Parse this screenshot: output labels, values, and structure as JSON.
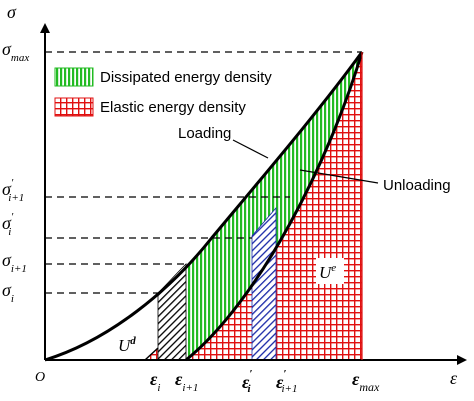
{
  "axes": {
    "y_symbol": "σ",
    "x_symbol": "ε",
    "origin": "O"
  },
  "y_ticks": [
    {
      "base": "σ",
      "sub": "max",
      "prime": ""
    },
    {
      "base": "σ",
      "sub": "i+1",
      "prime": "′"
    },
    {
      "base": "σ",
      "sub": "i",
      "prime": "′"
    },
    {
      "base": "σ",
      "sub": "i+1",
      "prime": ""
    },
    {
      "base": "σ",
      "sub": "i",
      "prime": ""
    }
  ],
  "x_ticks": [
    {
      "base": "ε",
      "sub": "i",
      "prime": ""
    },
    {
      "base": "ε",
      "sub": "i+1",
      "prime": ""
    },
    {
      "base": "ε",
      "sub": "i",
      "prime": "′"
    },
    {
      "base": "ε",
      "sub": "i+1",
      "prime": "′"
    },
    {
      "base": "ε",
      "sub": "max",
      "prime": ""
    }
  ],
  "legend": [
    {
      "label": "Dissipated energy density",
      "color": "#22bb22"
    },
    {
      "label": "Elastic energy density",
      "color": "#e01010"
    }
  ],
  "curves": {
    "loading_label": "Loading",
    "unloading_label": "Unloading"
  },
  "regions": {
    "ud_base": "U",
    "ud_sup": "d",
    "ue_base": "U",
    "ue_sup": "e"
  },
  "colors": {
    "dissipated": "#22bb22",
    "elastic": "#e01010",
    "hatch_black": "#000000",
    "hatch_blue": "#1a2aa8"
  }
}
